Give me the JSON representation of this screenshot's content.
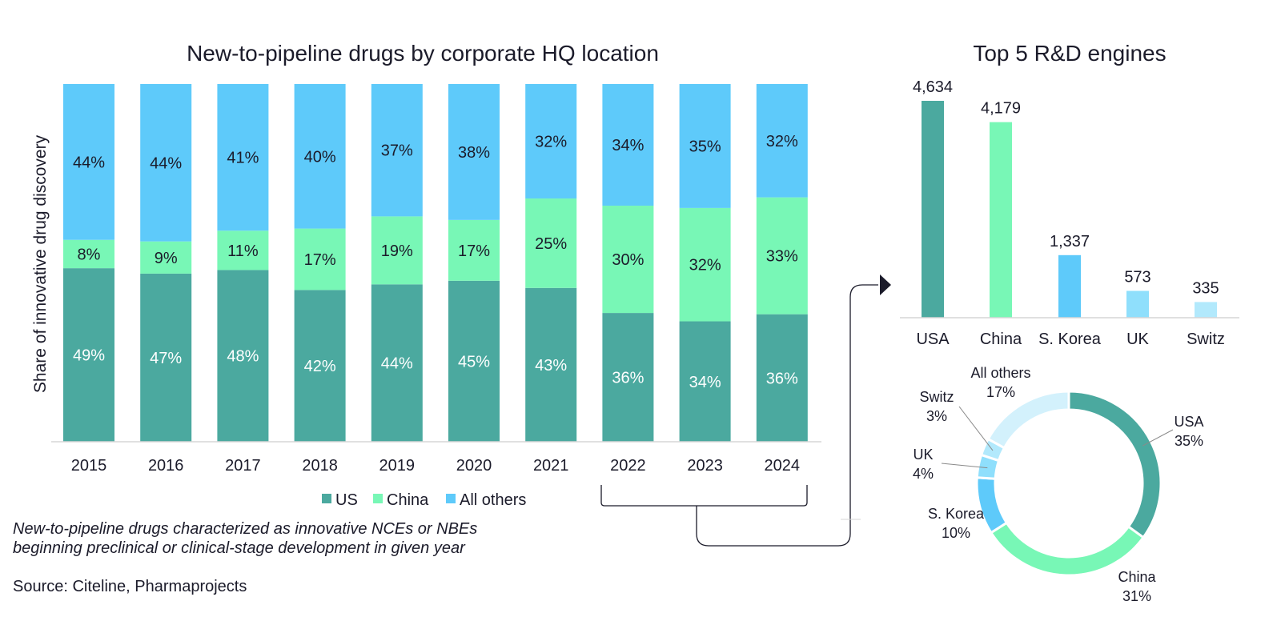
{
  "colors": {
    "us": "#4ba99f",
    "china": "#78f7b6",
    "others": "#5ecafa",
    "uk": "#8fdffc",
    "switz": "#b2e9fc",
    "all_others_pie": "#d3f1fc"
  },
  "chart_data": [
    {
      "type": "bar",
      "stacked": true,
      "title": "New-to-pipeline drugs by corporate HQ location",
      "ylabel": "Share of innovative drug discovery",
      "xlabel": "",
      "ylim": [
        0,
        100
      ],
      "categories": [
        "2015",
        "2016",
        "2017",
        "2018",
        "2019",
        "2020",
        "2021",
        "2022",
        "2023",
        "2024"
      ],
      "series": [
        {
          "name": "US",
          "values": [
            49,
            47,
            48,
            42,
            44,
            45,
            43,
            36,
            34,
            36
          ]
        },
        {
          "name": "China",
          "values": [
            8,
            9,
            11,
            17,
            19,
            17,
            25,
            30,
            32,
            33
          ]
        },
        {
          "name": "All others",
          "values": [
            44,
            44,
            41,
            40,
            37,
            38,
            32,
            34,
            35,
            32
          ]
        }
      ],
      "legend_position": "bottom"
    },
    {
      "type": "bar",
      "title": "Top 5 R&D engines",
      "categories": [
        "USA",
        "China",
        "S. Korea",
        "UK",
        "Switz"
      ],
      "values": [
        4634,
        4179,
        1337,
        573,
        335
      ],
      "value_labels": [
        "4,634",
        "4,179",
        "1,337",
        "573",
        "335"
      ]
    },
    {
      "type": "pie",
      "donut": true,
      "slices": [
        {
          "name": "USA",
          "value": 35,
          "label": "35%"
        },
        {
          "name": "China",
          "value": 31,
          "label": "31%"
        },
        {
          "name": "S. Korea",
          "value": 10,
          "label": "10%"
        },
        {
          "name": "UK",
          "value": 4,
          "label": "4%"
        },
        {
          "name": "Switz",
          "value": 3,
          "label": "3%"
        },
        {
          "name": "All others",
          "value": 17,
          "label": "17%"
        }
      ]
    }
  ],
  "footnote": {
    "line1": "New-to-pipeline drugs characterized as innovative NCEs or NBEs",
    "line2": "beginning preclinical or clinical-stage development in given year"
  },
  "source": "Source: Citeline, Pharmaprojects"
}
